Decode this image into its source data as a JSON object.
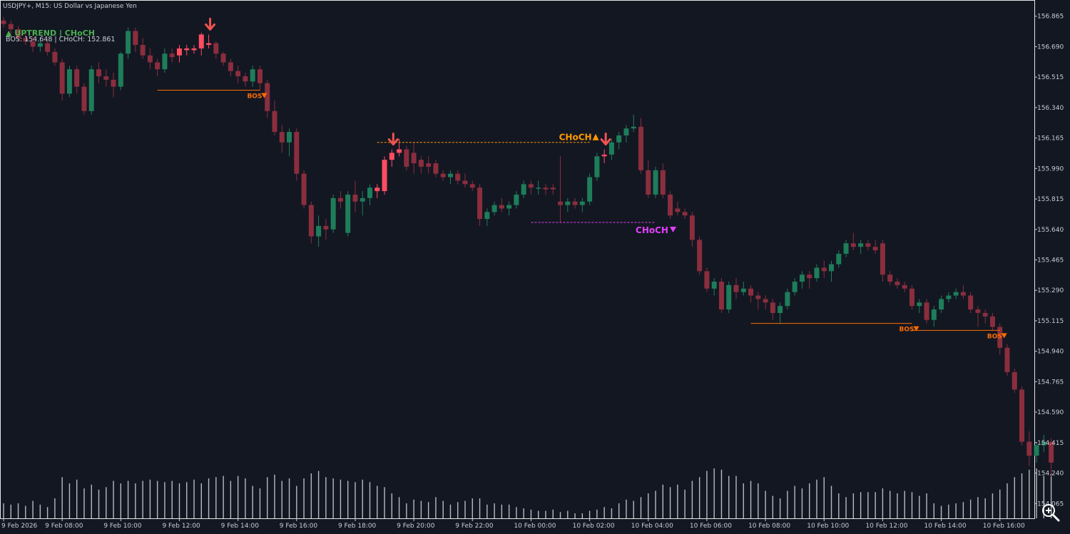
{
  "header": {
    "title": "USDJPY+, M15:  US Dollar vs Japanese Yen"
  },
  "status": {
    "trend_label": "▲ UPTREND | CHoCH",
    "levels_label": "BOS: 154.648  |  CHoCH: 152.861",
    "trend_color": "#4caf50"
  },
  "colors": {
    "background": "#131722",
    "bull": "#1e7d5a",
    "bear": "#8a2e3e",
    "highlight_bear": "#ff4d61",
    "bos": "#ff6d00",
    "choch_up": "#ff9800",
    "choch_down": "#e040fb",
    "volume": "#c8ccd4"
  },
  "icons": {
    "zoom": "magnifier-plus-icon"
  },
  "chart_data": {
    "type": "candlestick",
    "symbol": "USDJPY+",
    "timeframe": "M15",
    "ylim": [
      153.98,
      156.95
    ],
    "y_ticks": [
      "156.865",
      "156.690",
      "156.515",
      "156.340",
      "156.165",
      "155.990",
      "155.815",
      "155.640",
      "155.465",
      "155.290",
      "155.115",
      "154.940",
      "154.765",
      "154.590",
      "154.415",
      "154.240",
      "154.065"
    ],
    "x_ticks": [
      {
        "i": 0,
        "label": "9 Feb 2026"
      },
      {
        "i": 8,
        "label": "9 Feb 08:00"
      },
      {
        "i": 16,
        "label": "9 Feb 10:00"
      },
      {
        "i": 24,
        "label": "9 Feb 12:00"
      },
      {
        "i": 32,
        "label": "9 Feb 14:00"
      },
      {
        "i": 40,
        "label": "9 Feb 16:00"
      },
      {
        "i": 48,
        "label": "9 Feb 18:00"
      },
      {
        "i": 56,
        "label": "9 Feb 20:00"
      },
      {
        "i": 64,
        "label": "9 Feb 22:00"
      },
      {
        "i": 72,
        "label": "10 Feb 00:00"
      },
      {
        "i": 80,
        "label": "10 Feb 02:00"
      },
      {
        "i": 88,
        "label": "10 Feb 04:00"
      },
      {
        "i": 96,
        "label": "10 Feb 06:00"
      },
      {
        "i": 104,
        "label": "10 Feb 08:00"
      },
      {
        "i": 112,
        "label": "10 Feb 10:00"
      },
      {
        "i": 120,
        "label": "10 Feb 12:00"
      },
      {
        "i": 128,
        "label": "10 Feb 14:00"
      },
      {
        "i": 136,
        "label": "10 Feb 16:00"
      }
    ],
    "candles": [
      [
        156.84,
        156.86,
        156.8,
        156.82,
        12
      ],
      [
        156.82,
        156.84,
        156.76,
        156.79,
        11
      ],
      [
        156.79,
        156.81,
        156.72,
        156.74,
        12
      ],
      [
        156.74,
        156.78,
        156.7,
        156.72,
        10
      ],
      [
        156.72,
        156.75,
        156.66,
        156.69,
        14
      ],
      [
        156.69,
        156.74,
        156.66,
        156.71,
        11
      ],
      [
        156.71,
        156.73,
        156.64,
        156.66,
        9
      ],
      [
        156.66,
        156.68,
        156.58,
        156.6,
        16
      ],
      [
        156.6,
        156.62,
        156.38,
        156.42,
        33
      ],
      [
        156.42,
        156.58,
        156.4,
        156.56,
        28
      ],
      [
        156.56,
        156.58,
        156.42,
        156.46,
        31
      ],
      [
        156.46,
        156.48,
        156.3,
        156.32,
        24
      ],
      [
        156.32,
        156.58,
        156.3,
        156.56,
        27
      ],
      [
        156.56,
        156.6,
        156.48,
        156.52,
        23
      ],
      [
        156.52,
        156.56,
        156.46,
        156.5,
        25
      ],
      [
        156.5,
        156.54,
        156.4,
        156.46,
        30
      ],
      [
        156.46,
        156.66,
        156.44,
        156.65,
        28
      ],
      [
        156.65,
        156.8,
        156.62,
        156.78,
        30
      ],
      [
        156.78,
        156.8,
        156.66,
        156.7,
        28
      ],
      [
        156.7,
        156.74,
        156.62,
        156.64,
        30
      ],
      [
        156.64,
        156.68,
        156.56,
        156.6,
        31
      ],
      [
        156.6,
        156.62,
        156.52,
        156.56,
        30
      ],
      [
        156.56,
        156.68,
        156.54,
        156.65,
        29
      ],
      [
        156.65,
        156.68,
        156.6,
        156.63,
        30
      ],
      [
        156.64,
        156.7,
        156.6,
        156.68,
        28
      ],
      [
        156.68,
        156.7,
        156.64,
        156.67,
        29
      ],
      [
        156.67,
        156.7,
        156.65,
        156.68,
        31
      ],
      [
        156.76,
        156.77,
        156.64,
        156.68,
        28
      ],
      [
        156.71,
        156.76,
        156.68,
        156.7,
        32
      ],
      [
        156.71,
        156.72,
        156.62,
        156.65,
        33
      ],
      [
        156.65,
        156.66,
        156.58,
        156.6,
        34
      ],
      [
        156.6,
        156.62,
        156.52,
        156.55,
        30
      ],
      [
        156.55,
        156.58,
        156.48,
        156.52,
        34
      ],
      [
        156.52,
        156.54,
        156.46,
        156.49,
        32
      ],
      [
        156.49,
        156.58,
        156.46,
        156.56,
        26
      ],
      [
        156.56,
        156.58,
        156.44,
        156.48,
        24
      ],
      [
        156.48,
        156.5,
        156.28,
        156.32,
        33
      ],
      [
        156.32,
        156.38,
        156.18,
        156.2,
        35
      ],
      [
        156.2,
        156.24,
        156.08,
        156.14,
        30
      ],
      [
        156.14,
        156.22,
        156.06,
        156.2,
        32
      ],
      [
        156.2,
        156.22,
        155.92,
        155.96,
        26
      ],
      [
        155.96,
        155.98,
        155.76,
        155.78,
        32
      ],
      [
        155.78,
        155.8,
        155.56,
        155.6,
        36
      ],
      [
        155.6,
        155.72,
        155.54,
        155.66,
        38
      ],
      [
        155.66,
        155.7,
        155.58,
        155.64,
        33
      ],
      [
        155.64,
        155.84,
        155.62,
        155.82,
        32
      ],
      [
        155.82,
        155.86,
        155.76,
        155.8,
        31
      ],
      [
        155.62,
        155.86,
        155.6,
        155.84,
        30
      ],
      [
        155.84,
        155.92,
        155.74,
        155.8,
        29
      ],
      [
        155.8,
        155.86,
        155.72,
        155.82,
        31
      ],
      [
        155.82,
        155.9,
        155.78,
        155.88,
        29
      ],
      [
        155.88,
        155.9,
        155.82,
        155.86,
        26
      ],
      [
        155.86,
        156.06,
        155.84,
        156.04,
        25
      ],
      [
        156.04,
        156.1,
        156.0,
        156.08,
        20
      ],
      [
        156.08,
        156.16,
        156.06,
        156.1,
        17
      ],
      [
        156.1,
        156.12,
        155.98,
        156.0,
        12
      ],
      [
        156.08,
        156.14,
        155.96,
        156.02,
        15
      ],
      [
        156.04,
        156.06,
        155.96,
        156.0,
        14
      ],
      [
        156.02,
        156.06,
        155.96,
        156.0,
        13
      ],
      [
        156.02,
        156.04,
        155.94,
        155.96,
        17
      ],
      [
        155.96,
        155.98,
        155.92,
        155.94,
        14
      ],
      [
        155.94,
        155.98,
        155.9,
        155.96,
        11
      ],
      [
        155.96,
        155.98,
        155.9,
        155.92,
        13
      ],
      [
        155.92,
        155.96,
        155.88,
        155.9,
        14
      ],
      [
        155.9,
        155.92,
        155.86,
        155.88,
        16
      ],
      [
        155.88,
        155.9,
        155.66,
        155.7,
        16
      ],
      [
        155.7,
        155.76,
        155.66,
        155.74,
        11
      ],
      [
        155.74,
        155.8,
        155.72,
        155.78,
        12
      ],
      [
        155.78,
        155.82,
        155.74,
        155.76,
        11
      ],
      [
        155.76,
        155.8,
        155.72,
        155.78,
        11
      ],
      [
        155.78,
        155.86,
        155.76,
        155.84,
        9
      ],
      [
        155.84,
        155.92,
        155.82,
        155.9,
        8
      ],
      [
        155.9,
        155.92,
        155.84,
        155.88,
        7
      ],
      [
        155.88,
        155.92,
        155.84,
        155.88,
        6
      ],
      [
        155.88,
        155.9,
        155.84,
        155.87,
        6
      ],
      [
        155.88,
        155.9,
        155.84,
        155.87,
        7
      ],
      [
        155.8,
        156.06,
        155.68,
        155.78,
        5
      ],
      [
        155.78,
        155.82,
        155.74,
        155.8,
        6
      ],
      [
        155.8,
        155.82,
        155.76,
        155.78,
        4
      ],
      [
        155.78,
        155.82,
        155.74,
        155.8,
        4
      ],
      [
        155.8,
        155.96,
        155.78,
        155.94,
        6
      ],
      [
        155.94,
        156.08,
        155.92,
        156.06,
        7
      ],
      [
        156.06,
        156.1,
        156.02,
        156.07,
        9
      ],
      [
        156.07,
        156.16,
        156.04,
        156.14,
        8
      ],
      [
        156.14,
        156.2,
        156.1,
        156.18,
        12
      ],
      [
        156.18,
        156.24,
        156.14,
        156.22,
        15
      ],
      [
        156.22,
        156.3,
        156.2,
        156.23,
        14
      ],
      [
        156.23,
        156.28,
        155.96,
        155.98,
        17
      ],
      [
        155.98,
        156.04,
        155.82,
        155.84,
        20
      ],
      [
        155.84,
        156.0,
        155.82,
        155.98,
        22
      ],
      [
        155.98,
        156.02,
        155.82,
        155.84,
        27
      ],
      [
        155.84,
        155.86,
        155.7,
        155.72,
        25
      ],
      [
        155.76,
        155.8,
        155.72,
        155.74,
        27
      ],
      [
        155.74,
        155.76,
        155.7,
        155.72,
        23
      ],
      [
        155.72,
        155.74,
        155.54,
        155.58,
        30
      ],
      [
        155.58,
        155.6,
        155.38,
        155.4,
        33
      ],
      [
        155.4,
        155.42,
        155.28,
        155.3,
        38
      ],
      [
        155.3,
        155.36,
        155.26,
        155.34,
        40
      ],
      [
        155.34,
        155.36,
        155.16,
        155.18,
        39
      ],
      [
        155.18,
        155.34,
        155.16,
        155.32,
        34
      ],
      [
        155.32,
        155.36,
        155.24,
        155.28,
        34
      ],
      [
        155.28,
        155.34,
        155.26,
        155.3,
        28
      ],
      [
        155.3,
        155.32,
        155.22,
        155.26,
        30
      ],
      [
        155.26,
        155.28,
        155.18,
        155.24,
        28
      ],
      [
        155.24,
        155.26,
        155.18,
        155.22,
        22
      ],
      [
        155.22,
        155.24,
        155.12,
        155.16,
        18
      ],
      [
        155.16,
        155.22,
        155.1,
        155.2,
        16
      ],
      [
        155.2,
        155.3,
        155.18,
        155.28,
        22
      ],
      [
        155.28,
        155.36,
        155.26,
        155.34,
        26
      ],
      [
        155.34,
        155.4,
        155.3,
        155.38,
        24
      ],
      [
        155.38,
        155.4,
        155.3,
        155.36,
        28
      ],
      [
        155.36,
        155.44,
        155.34,
        155.42,
        31
      ],
      [
        155.42,
        155.46,
        155.36,
        155.4,
        33
      ],
      [
        155.4,
        155.46,
        155.34,
        155.44,
        26
      ],
      [
        155.44,
        155.52,
        155.42,
        155.5,
        20
      ],
      [
        155.5,
        155.58,
        155.48,
        155.56,
        17
      ],
      [
        155.56,
        155.62,
        155.52,
        155.54,
        20
      ],
      [
        155.54,
        155.58,
        155.5,
        155.56,
        21
      ],
      [
        155.56,
        155.58,
        155.52,
        155.54,
        21
      ],
      [
        155.54,
        155.58,
        155.5,
        155.52,
        21
      ],
      [
        155.56,
        155.58,
        155.34,
        155.38,
        24
      ],
      [
        155.38,
        155.4,
        155.32,
        155.34,
        22
      ],
      [
        155.34,
        155.36,
        155.3,
        155.32,
        20
      ],
      [
        155.32,
        155.34,
        155.28,
        155.3,
        22
      ],
      [
        155.3,
        155.32,
        155.18,
        155.2,
        21
      ],
      [
        155.2,
        155.24,
        155.16,
        155.22,
        18
      ],
      [
        155.22,
        155.24,
        155.1,
        155.12,
        20
      ],
      [
        155.12,
        155.2,
        155.08,
        155.18,
        12
      ],
      [
        155.18,
        155.26,
        155.16,
        155.24,
        10
      ],
      [
        155.24,
        155.28,
        155.22,
        155.26,
        11
      ],
      [
        155.26,
        155.3,
        155.24,
        155.28,
        12
      ],
      [
        155.28,
        155.32,
        155.24,
        155.26,
        13
      ],
      [
        155.26,
        155.28,
        155.16,
        155.18,
        15
      ],
      [
        155.18,
        155.2,
        155.08,
        155.16,
        17
      ],
      [
        155.16,
        155.18,
        155.1,
        155.14,
        16
      ],
      [
        155.14,
        155.16,
        155.06,
        155.08,
        20
      ],
      [
        155.08,
        155.1,
        154.92,
        154.96,
        23
      ],
      [
        154.96,
        154.98,
        154.8,
        154.82,
        28
      ],
      [
        154.82,
        154.84,
        154.7,
        154.72,
        33
      ],
      [
        154.72,
        154.74,
        154.4,
        154.42,
        36
      ],
      [
        154.42,
        154.48,
        154.28,
        154.34,
        39
      ],
      [
        154.34,
        154.42,
        154.3,
        154.4,
        40
      ],
      [
        154.4,
        154.46,
        154.36,
        154.42,
        34
      ],
      [
        154.42,
        154.44,
        154.22,
        154.3,
        36
      ]
    ],
    "annotations": {
      "bos": [
        {
          "label": "BOS",
          "direction": "down",
          "from": 21,
          "to": 35,
          "price": 156.44
        },
        {
          "label": "BOS",
          "direction": "down",
          "from": 102,
          "to": 124,
          "price": 155.1
        },
        {
          "label": "BOS",
          "direction": "down",
          "from": 124,
          "to": 136,
          "price": 155.06
        }
      ],
      "choch": [
        {
          "label": "CHoCH",
          "direction": "up",
          "from": 51,
          "to": 80,
          "price": 156.14,
          "color": "#ff9800"
        },
        {
          "label": "CHoCH",
          "direction": "down",
          "from": 72,
          "to": 89,
          "price": 155.68,
          "color": "#e040fb"
        }
      ],
      "down_arrows": [
        28,
        53,
        82
      ],
      "highlight_candles": [
        24,
        25,
        26,
        27,
        28,
        51,
        52,
        53,
        54,
        82
      ]
    }
  }
}
